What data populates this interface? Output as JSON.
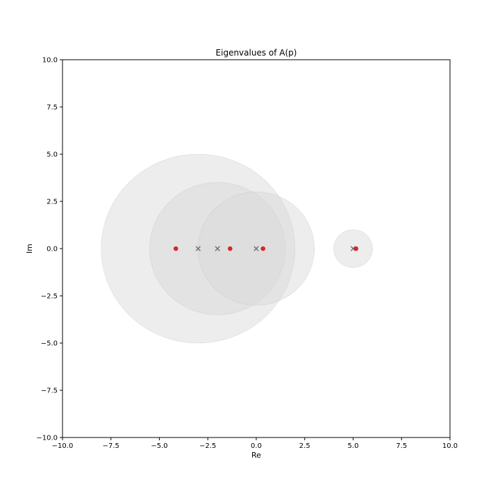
{
  "chart_data": {
    "type": "scatter",
    "title": "Eigenvalues of A(p)",
    "xlabel": "Re",
    "ylabel": "Im",
    "xlim": [
      -10,
      10
    ],
    "ylim": [
      -10,
      10
    ],
    "grid": false,
    "x_ticks": [
      -10.0,
      -7.5,
      -5.0,
      -2.5,
      0.0,
      2.5,
      5.0,
      7.5,
      10.0
    ],
    "x_tick_labels": [
      "−10.0",
      "−7.5",
      "−5.0",
      "−2.5",
      "0.0",
      "2.5",
      "5.0",
      "7.5",
      "10.0"
    ],
    "y_ticks": [
      -10.0,
      -7.5,
      -5.0,
      -2.5,
      0.0,
      2.5,
      5.0,
      7.5,
      10.0
    ],
    "y_tick_labels": [
      "−10.0",
      "−7.5",
      "−5.0",
      "−2.5",
      "0.0",
      "2.5",
      "5.0",
      "7.5",
      "10.0"
    ],
    "discs": [
      {
        "center": [
          -3.0,
          0.0
        ],
        "radius": 5.0
      },
      {
        "center": [
          -2.0,
          0.0
        ],
        "radius": 3.5
      },
      {
        "center": [
          0.0,
          0.0
        ],
        "radius": 3.0
      },
      {
        "center": [
          5.0,
          0.0
        ],
        "radius": 1.0
      }
    ],
    "centers_x_markers": [
      {
        "x": -3.0,
        "y": 0.0
      },
      {
        "x": -2.0,
        "y": 0.0
      },
      {
        "x": 0.0,
        "y": 0.0
      },
      {
        "x": 5.0,
        "y": 0.0
      }
    ],
    "eigenvalues": [
      {
        "x": -4.15,
        "y": 0.0
      },
      {
        "x": -1.35,
        "y": 0.0
      },
      {
        "x": 0.35,
        "y": 0.0
      },
      {
        "x": 5.15,
        "y": 0.0
      }
    ],
    "colors": {
      "disc_fill": "#d8d8d8",
      "disc_edge": "#bdbdbd",
      "center_marker": "#6e6e6e",
      "eigenvalue_marker": "#d62728"
    }
  }
}
